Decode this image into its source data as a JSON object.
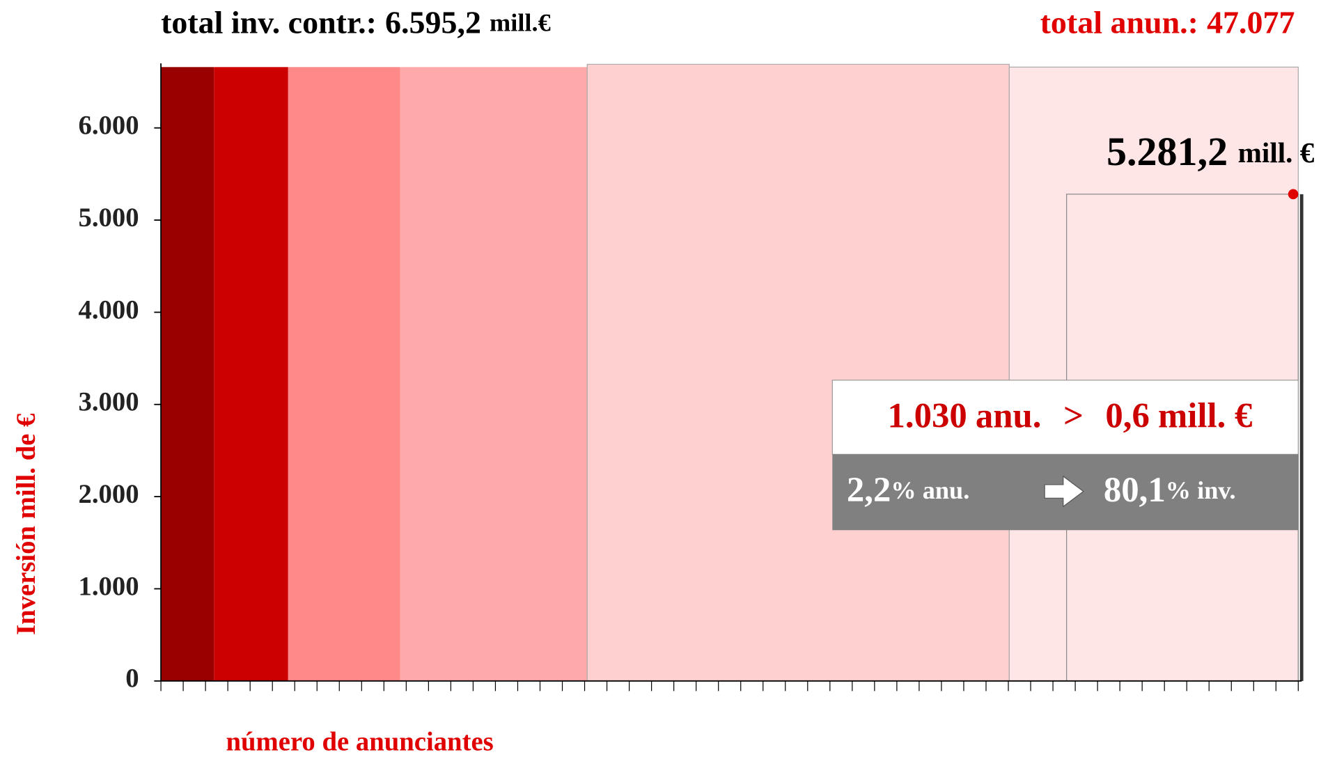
{
  "chart_data": {
    "type": "bands",
    "title_left": {
      "text": "total inv. contr.:",
      "value": 6595.2,
      "value_label": "6.595,2",
      "unit": "mill.€"
    },
    "title_right": {
      "text": "total anun.:",
      "value": 47077,
      "value_label": "47.077"
    },
    "y_label": "Inversión mill. de €",
    "x_label": "número de anunciantes",
    "ylim": [
      0,
      6700
    ],
    "yticks": [
      0,
      {
        "value": 1000,
        "label": "1.000"
      },
      {
        "value": 2000,
        "label": "2.000"
      },
      {
        "value": 3000,
        "label": "3.000"
      },
      {
        "value": 4000,
        "label": "4.000"
      },
      {
        "value": 5000,
        "label": "5.000"
      },
      {
        "value": 6000,
        "label": "6.000"
      }
    ],
    "bands": [
      {
        "color": "#990000",
        "value": 6660
      },
      {
        "color": "#cc0000",
        "value": 6660
      },
      {
        "color": "#ff8888",
        "value": 6660
      },
      {
        "color": "#ffaaaa",
        "value": 6660
      },
      {
        "color": "#ffd0d0",
        "value": 6690
      },
      {
        "color": "#ffe6e6",
        "value": 6660
      }
    ],
    "highlight": {
      "value": 5281.2,
      "value_label": "5.281,2",
      "unit": "mill. €"
    },
    "annotation": {
      "advertisers": {
        "value": 1030,
        "label": "1.030",
        "unit": "anu."
      },
      "relation": ">",
      "threshold": {
        "value": 0.6,
        "label": "0,6",
        "unit": "mill. €"
      },
      "share_advertisers": {
        "value": 2.2,
        "label": "2,2",
        "unit": "% anu."
      },
      "share_investment": {
        "value": 80.1,
        "label": "80,1",
        "unit": "% inv."
      }
    }
  }
}
